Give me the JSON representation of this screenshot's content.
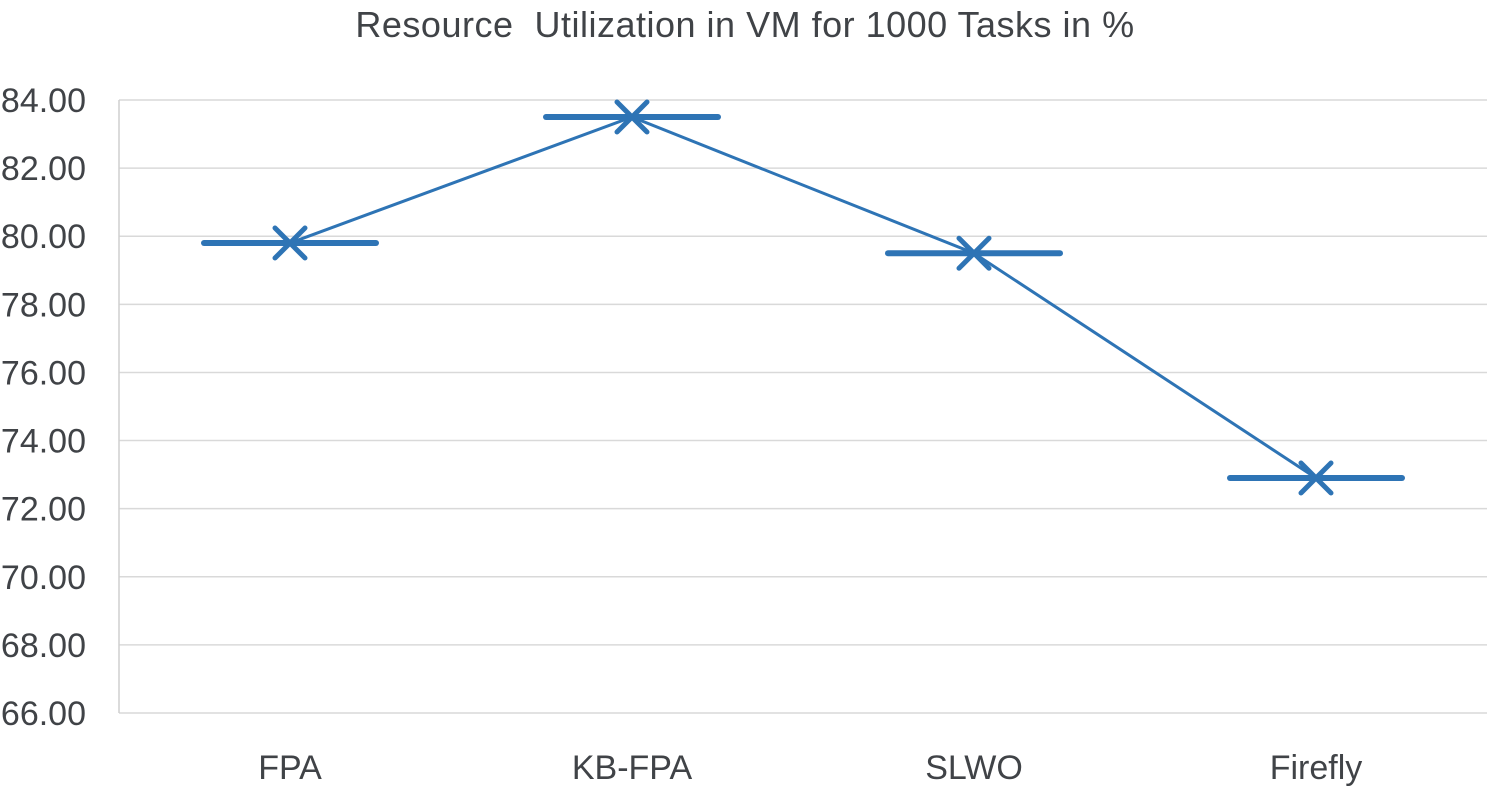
{
  "chart_data": {
    "type": "line",
    "title": "Resource  Utilization in VM for 1000 Tasks in %",
    "categories": [
      "FPA",
      "KB-FPA",
      "SLWO",
      "Firefly"
    ],
    "series": [
      {
        "name": "Resource Utilization",
        "values": [
          79.8,
          83.5,
          79.5,
          72.9
        ]
      }
    ],
    "xlabel": "",
    "ylabel": "",
    "ylim": [
      66,
      84
    ],
    "ytick_step": 2,
    "ytick_decimals": 2,
    "ytick_labels": [
      "66.00",
      "68.00",
      "70.00",
      "72.00",
      "74.00",
      "76.00",
      "78.00",
      "80.00",
      "82.00",
      "84.00"
    ],
    "grid": true,
    "legend_position": "none",
    "marker_style": "x-with-horizontal-dash",
    "colors": {
      "line": "#2E74B5",
      "marker": "#2E74B5",
      "grid": "#D9D9D9",
      "axis": "#CFCFCF",
      "text": "#404347",
      "background": "#FFFFFF"
    }
  }
}
